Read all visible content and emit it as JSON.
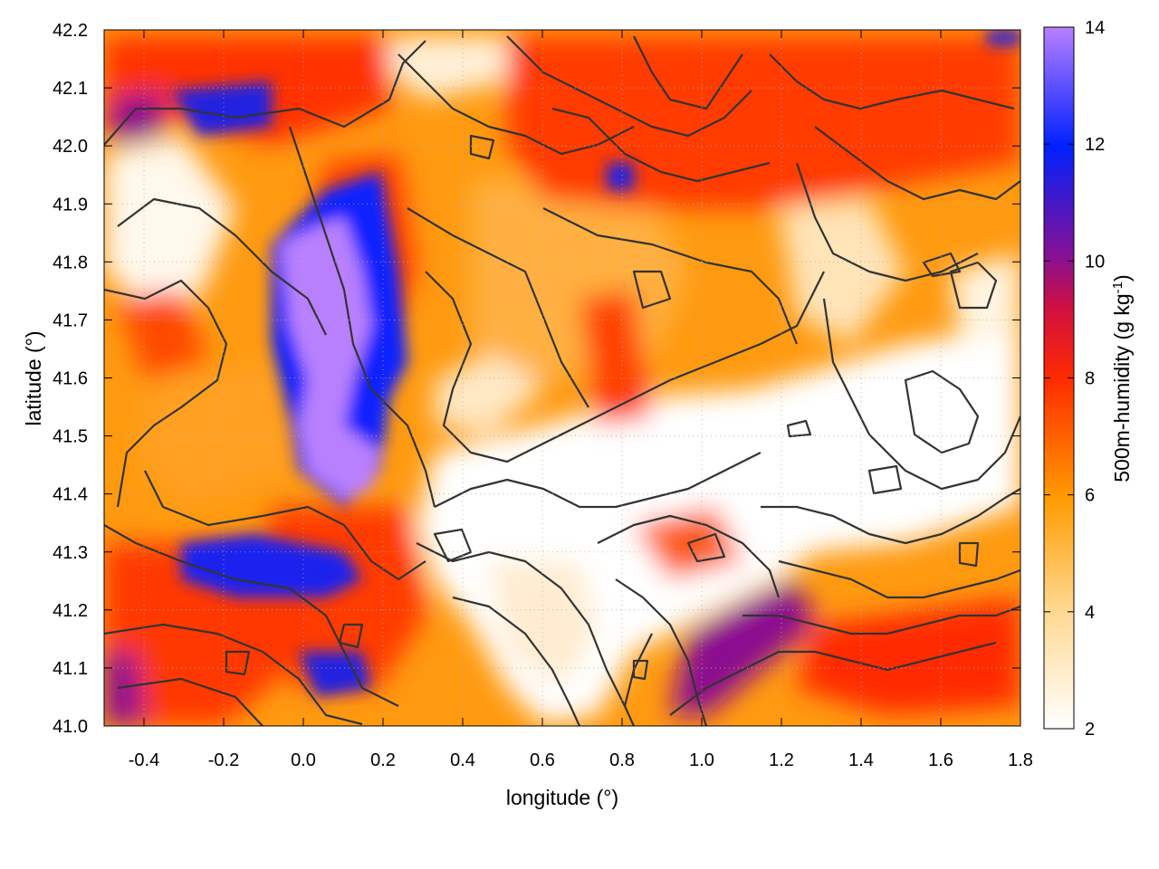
{
  "chart_data": {
    "type": "heatmap",
    "title": "",
    "xlabel": "longitude (°)",
    "ylabel": "latitude (°)",
    "colorbar_label": "500m-humidity (g kg",
    "colorbar_label_sup": "-1",
    "colorbar_label_end": ")",
    "xlim": [
      -0.5,
      1.8
    ],
    "ylim": [
      41.0,
      42.2
    ],
    "clim": [
      2,
      14
    ],
    "xticks": [
      -0.4,
      -0.2,
      0.0,
      0.2,
      0.4,
      0.6,
      0.8,
      1.0,
      1.2,
      1.4,
      1.6,
      1.8
    ],
    "xtick_labels": [
      "-0.4",
      "-0.2",
      "0.0",
      "0.2",
      "0.4",
      "0.6",
      "0.8",
      "1.0",
      "1.2",
      "1.4",
      "1.6",
      "1.8"
    ],
    "yticks": [
      41.0,
      41.1,
      41.2,
      41.3,
      41.4,
      41.5,
      41.6,
      41.7,
      41.8,
      41.9,
      42.0,
      42.1,
      42.2
    ],
    "ytick_labels": [
      "41.0",
      "41.1",
      "41.2",
      "41.3",
      "41.4",
      "41.5",
      "41.6",
      "41.7",
      "41.8",
      "41.9",
      "42.0",
      "42.1",
      "42.2"
    ],
    "cticks": [
      2,
      4,
      6,
      8,
      10,
      12,
      14
    ],
    "ctick_labels": [
      "2",
      "4",
      "6",
      "8",
      "10",
      "12",
      "14"
    ],
    "grid": true,
    "colormap": [
      "#ffffff",
      "#ffa000",
      "#ff2000",
      "#8a1090",
      "#0020ff",
      "#b880ff"
    ],
    "contour_color": "#333333"
  }
}
